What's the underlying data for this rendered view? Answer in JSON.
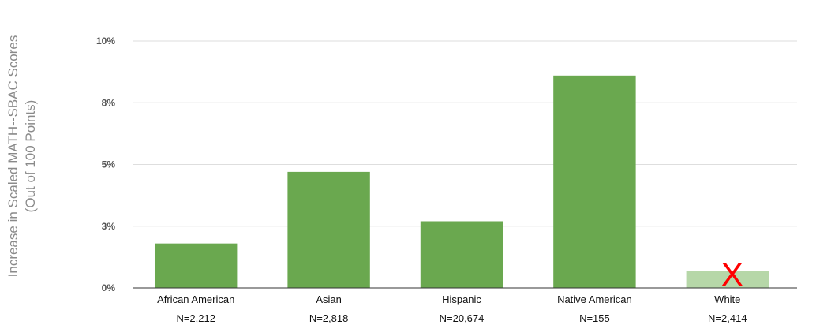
{
  "chart_data": {
    "type": "bar",
    "ylabel": [
      "Increase in  Scaled MATH--SBAC Scores",
      "(Out of 100 Points)"
    ],
    "ylim": [
      0,
      10
    ],
    "yticks": [
      {
        "value": 0,
        "label": "0%"
      },
      {
        "value": 2.5,
        "label": "3%"
      },
      {
        "value": 5,
        "label": "5%"
      },
      {
        "value": 7.5,
        "label": "8%"
      },
      {
        "value": 10,
        "label": "10%"
      }
    ],
    "grid": true,
    "categories": [
      "African American",
      "Asian",
      "Hispanic",
      "Native American",
      "White"
    ],
    "sample_sizes": [
      "N=2,212",
      "N=2,818",
      "N=20,674",
      "N=155",
      "N=2,414"
    ],
    "values": [
      1.8,
      4.7,
      2.7,
      8.6,
      0.7
    ],
    "colors": [
      "#6aa84f",
      "#6aa84f",
      "#6aa84f",
      "#6aa84f",
      "#b6d7a8"
    ],
    "annotations": [
      {
        "category": "White",
        "text": "X",
        "color": "#ff0000"
      }
    ]
  }
}
